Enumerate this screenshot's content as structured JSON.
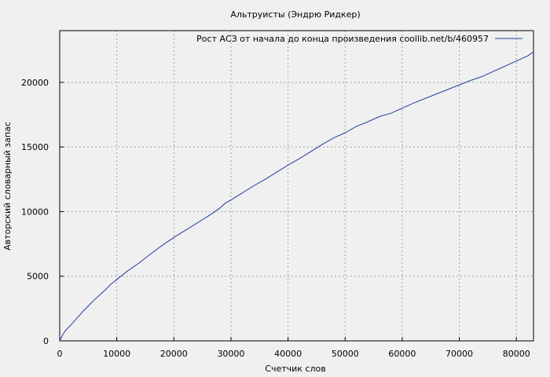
{
  "chart_data": {
    "type": "line",
    "title": "Альтруисты (Эндрю Ридкер)",
    "xlabel": "Счетчик слов",
    "ylabel": "Авторский словарный запас",
    "xlim": [
      0,
      83000
    ],
    "ylim": [
      0,
      24000
    ],
    "xticks": [
      0,
      10000,
      20000,
      30000,
      40000,
      50000,
      60000,
      70000,
      80000
    ],
    "yticks": [
      0,
      5000,
      10000,
      15000,
      20000
    ],
    "grid": true,
    "legend_position": "top-right",
    "series": [
      {
        "name": "Рост АСЗ от начала до конца произведения coollib.net/b/460957",
        "color": "#1f3f9f",
        "x": [
          0,
          500,
          1000,
          2000,
          3000,
          4000,
          5000,
          6000,
          7000,
          8000,
          9000,
          10000,
          12000,
          14000,
          16000,
          18000,
          20000,
          22000,
          24000,
          26000,
          28000,
          29000,
          30000,
          32000,
          34000,
          36000,
          38000,
          40000,
          42000,
          44000,
          46000,
          48000,
          50000,
          52000,
          54000,
          56000,
          58000,
          60000,
          62000,
          64000,
          66000,
          68000,
          70000,
          72000,
          74000,
          76000,
          78000,
          80000,
          82000,
          83000
        ],
        "y": [
          0,
          450,
          800,
          1250,
          1750,
          2250,
          2700,
          3150,
          3550,
          3950,
          4400,
          4750,
          5450,
          6050,
          6750,
          7400,
          8000,
          8550,
          9100,
          9650,
          10250,
          10650,
          10900,
          11450,
          12000,
          12500,
          13050,
          13600,
          14100,
          14650,
          15200,
          15700,
          16100,
          16600,
          16950,
          17350,
          17600,
          18000,
          18400,
          18750,
          19100,
          19450,
          19800,
          20150,
          20450,
          20850,
          21250,
          21650,
          22050,
          22350
        ]
      }
    ]
  }
}
